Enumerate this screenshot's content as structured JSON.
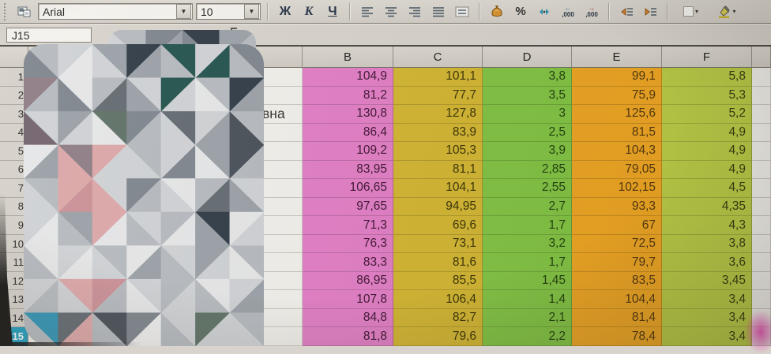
{
  "toolbar": {
    "font_name": "Arial",
    "font_size": "10",
    "bold": "Ж",
    "italic": "К",
    "underline": "Ч",
    "percent": "%",
    "decimals": ",000"
  },
  "formula_row": {
    "name_box": "J15",
    "formula": ""
  },
  "sheet": {
    "visible_columns": [
      "B",
      "C",
      "D",
      "E",
      "F"
    ],
    "row_numbers": [
      "1",
      "2",
      "3",
      "4",
      "5",
      "6",
      "7",
      "8",
      "9",
      "10",
      "11",
      "12",
      "13",
      "14",
      "15"
    ],
    "selected_cell": "J15",
    "selected_row": "15",
    "a3_fragment": "вна",
    "data": [
      {
        "B": "104,9",
        "C": "101,1",
        "D": "3,8",
        "E": "99,1",
        "F": "5,8"
      },
      {
        "B": "81,2",
        "C": "77,7",
        "D": "3,5",
        "E": "75,9",
        "F": "5,3"
      },
      {
        "B": "130,8",
        "C": "127,8",
        "D": "3",
        "E": "125,6",
        "F": "5,2"
      },
      {
        "B": "86,4",
        "C": "83,9",
        "D": "2,5",
        "E": "81,5",
        "F": "4,9"
      },
      {
        "B": "109,2",
        "C": "105,3",
        "D": "3,9",
        "E": "104,3",
        "F": "4,9"
      },
      {
        "B": "83,95",
        "C": "81,1",
        "D": "2,85",
        "E": "79,05",
        "F": "4,9"
      },
      {
        "B": "106,65",
        "C": "104,1",
        "D": "2,55",
        "E": "102,15",
        "F": "4,5"
      },
      {
        "B": "97,65",
        "C": "94,95",
        "D": "2,7",
        "E": "93,3",
        "F": "4,35"
      },
      {
        "B": "71,3",
        "C": "69,6",
        "D": "1,7",
        "E": "67",
        "F": "4,3"
      },
      {
        "B": "76,3",
        "C": "73,1",
        "D": "3,2",
        "E": "72,5",
        "F": "3,8"
      },
      {
        "B": "83,3",
        "C": "81,6",
        "D": "1,7",
        "E": "79,7",
        "F": "3,6"
      },
      {
        "B": "86,95",
        "C": "85,5",
        "D": "1,45",
        "E": "83,5",
        "F": "3,45"
      },
      {
        "B": "107,8",
        "C": "106,4",
        "D": "1,4",
        "E": "104,4",
        "F": "3,4"
      },
      {
        "B": "84,8",
        "C": "82,7",
        "D": "2,1",
        "E": "81,4",
        "F": "3,4"
      },
      {
        "B": "81,8",
        "C": "79,6",
        "D": "2,2",
        "E": "78,4",
        "F": "3,4"
      }
    ],
    "column_fills": {
      "B": "#e27cc6",
      "C": "#d2b52e",
      "D": "#7fc340",
      "E": "#eea41e",
      "F": "#b8cb42"
    },
    "column_text_colors": {
      "B": "#3c1030",
      "C": "#383000",
      "D": "#1c3d08",
      "E": "#503408",
      "F": "#33380a"
    },
    "selected_row_header_color": "#1f9cbd"
  },
  "censor_mosaic": {
    "palette": {
      "g0": "#e6e7e9",
      "g1": "#cfd2d6",
      "g2": "#b5bac0",
      "g3": "#99a0a7",
      "g4": "#7d848d",
      "g5": "#606870",
      "g6": "#454d56",
      "nv": "#2c3844",
      "tg": "#20504c",
      "tb": "#2e93b5",
      "pk": "#dda6a8",
      "pk2": "#cb9097",
      "mv": "#8e7b85",
      "mv2": "#70616c",
      "gn": "#5c7065",
      "wh": "#f0f0f1"
    },
    "bump_grid": [
      [
        "g2:g1",
        "g4:g3",
        "nv:g4",
        "g3:g2"
      ]
    ],
    "main_grid": [
      [
        "g2:g4",
        "g1:g0",
        "g3:g1",
        "nv:g3",
        "tg:g2",
        "g1:tg",
        "g4:g2"
      ],
      [
        "mv:g2",
        "g0:g4",
        "g2:g5",
        "g1:g3",
        "tg:g1",
        "g2:g0",
        "nv:g3"
      ],
      [
        "g1:mv2",
        "g3:g1",
        "gn:g0",
        "g4:g2",
        "g5:g1",
        "g1:g3",
        "g2:g6"
      ],
      [
        "g0:g3",
        "mv:pk",
        "pk:g1",
        "g2:g1",
        "g1:g4",
        "g3:g0",
        "g6:g2"
      ],
      [
        "g2:g1",
        "pk:pk2",
        "g1:pk",
        "g4:g2",
        "g0:g1",
        "g2:g5",
        "g1:g3"
      ],
      [
        "g1:g0",
        "g3:g2",
        "pk:g0",
        "g1:g2",
        "g2:g0",
        "nv:g3",
        "g0:g1"
      ],
      [
        "g0:g2",
        "g1:g0",
        "g2:g1",
        "g0:g3",
        "g1:g2",
        "g3:g1",
        "g2:g0"
      ],
      [
        "g1:g2",
        "pk:g1",
        "pk2:g2",
        "g1:g0",
        "g2:g1",
        "g0:g2",
        "g1:g3"
      ],
      [
        "tb:g2",
        "g5:pk",
        "g6:g2",
        "g4:wh",
        "g1:g2",
        "gn:g1",
        "g2:g1"
      ]
    ]
  }
}
